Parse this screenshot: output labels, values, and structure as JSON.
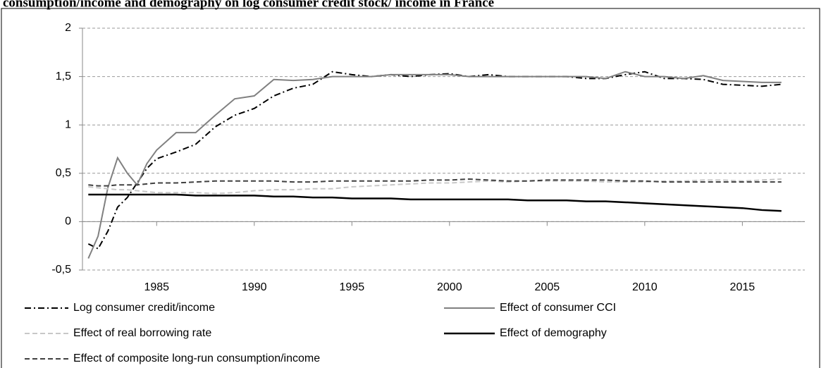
{
  "chart_data": {
    "type": "line",
    "title": "consumption/income and demography on log consumer credit stock/ income in France",
    "x": [
      1981.5,
      1982,
      1982.5,
      1983,
      1983.5,
      1984,
      1984.5,
      1985,
      1986,
      1987,
      1988,
      1989,
      1990,
      1991,
      1992,
      1993,
      1994,
      1995,
      1996,
      1997,
      1998,
      1999,
      2000,
      2001,
      2002,
      2003,
      2004,
      2005,
      2006,
      2007,
      2008,
      2009,
      2010,
      2011,
      2012,
      2013,
      2014,
      2015,
      2016,
      2017
    ],
    "xlim": [
      1981.2,
      2018.2
    ],
    "xticks": [
      1985,
      1990,
      1995,
      2000,
      2005,
      2010,
      2015
    ],
    "ylim": [
      -0.5,
      2
    ],
    "yticks": [
      {
        "value": -0.5,
        "label": "-0,5"
      },
      0,
      {
        "value": 0.5,
        "label": "0,5"
      },
      1,
      {
        "value": 1.5,
        "label": "1,5"
      },
      2
    ],
    "grid": true,
    "series": [
      {
        "name": "Log consumer credit/income",
        "color": "#000000",
        "style": "dash-dot",
        "values": [
          -0.23,
          -0.28,
          -0.1,
          0.15,
          0.25,
          0.4,
          0.55,
          0.65,
          0.72,
          0.8,
          0.98,
          1.1,
          1.17,
          1.3,
          1.38,
          1.42,
          1.55,
          1.52,
          1.5,
          1.52,
          1.5,
          1.52,
          1.53,
          1.5,
          1.52,
          1.5,
          1.5,
          1.5,
          1.5,
          1.48,
          1.48,
          1.52,
          1.55,
          1.48,
          1.48,
          1.47,
          1.42,
          1.41,
          1.4,
          1.42
        ]
      },
      {
        "name": "Effect of consumer CCI",
        "color": "#808080",
        "style": "solid",
        "values": [
          -0.38,
          -0.15,
          0.35,
          0.66,
          0.5,
          0.38,
          0.6,
          0.74,
          0.92,
          0.92,
          1.1,
          1.27,
          1.3,
          1.47,
          1.46,
          1.47,
          1.5,
          1.5,
          1.5,
          1.52,
          1.52,
          1.52,
          1.52,
          1.5,
          1.5,
          1.5,
          1.5,
          1.5,
          1.5,
          1.5,
          1.48,
          1.55,
          1.5,
          1.5,
          1.48,
          1.51,
          1.46,
          1.45,
          1.44,
          1.44
        ]
      },
      {
        "name": "Effect of real borrowing rate",
        "color": "#c8c8c8",
        "style": "dashed",
        "values": [
          0.36,
          0.35,
          0.34,
          0.33,
          0.33,
          0.32,
          0.31,
          0.3,
          0.3,
          0.3,
          0.29,
          0.3,
          0.32,
          0.33,
          0.33,
          0.34,
          0.34,
          0.36,
          0.37,
          0.38,
          0.39,
          0.4,
          0.4,
          0.41,
          0.42,
          0.41,
          0.42,
          0.42,
          0.42,
          0.42,
          0.41,
          0.41,
          0.41,
          0.42,
          0.42,
          0.43,
          0.43,
          0.42,
          0.43,
          0.44
        ]
      },
      {
        "name": "Effect of demography",
        "color": "#000000",
        "style": "solid-thick",
        "values": [
          0.28,
          0.28,
          0.28,
          0.28,
          0.28,
          0.28,
          0.28,
          0.28,
          0.28,
          0.27,
          0.27,
          0.27,
          0.27,
          0.26,
          0.26,
          0.25,
          0.25,
          0.24,
          0.24,
          0.24,
          0.23,
          0.23,
          0.23,
          0.23,
          0.23,
          0.23,
          0.22,
          0.22,
          0.22,
          0.21,
          0.21,
          0.2,
          0.19,
          0.18,
          0.17,
          0.16,
          0.15,
          0.14,
          0.12,
          0.11
        ]
      },
      {
        "name": "Effect of composite long-run consumption/income",
        "color": "#404040",
        "style": "dashed",
        "values": [
          0.38,
          0.37,
          0.37,
          0.38,
          0.38,
          0.38,
          0.39,
          0.4,
          0.4,
          0.41,
          0.42,
          0.42,
          0.42,
          0.42,
          0.41,
          0.41,
          0.42,
          0.42,
          0.42,
          0.42,
          0.42,
          0.43,
          0.43,
          0.44,
          0.43,
          0.42,
          0.42,
          0.43,
          0.43,
          0.43,
          0.43,
          0.42,
          0.42,
          0.41,
          0.41,
          0.41,
          0.41,
          0.41,
          0.41,
          0.41
        ]
      }
    ]
  }
}
